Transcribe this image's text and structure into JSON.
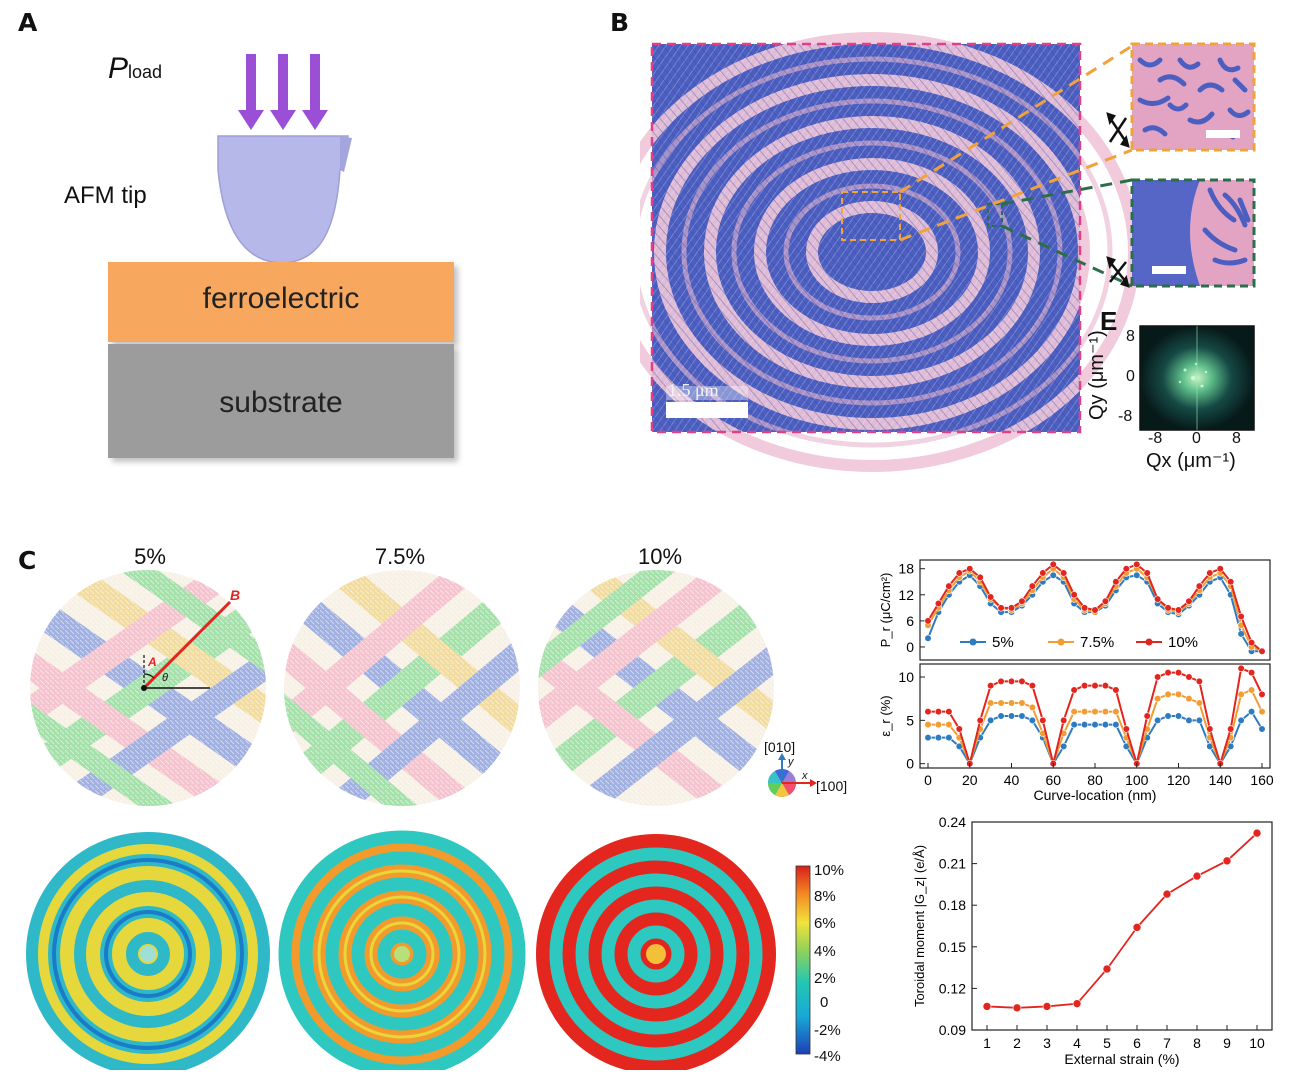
{
  "panels": {
    "a": "A",
    "b": "B",
    "c": "C"
  },
  "panel_a": {
    "p_symbol": "P",
    "p_subscript": "load",
    "tip_label": "AFM tip",
    "ferroelectric_label": "ferroelectric",
    "substrate_label": "substrate"
  },
  "panel_b": {
    "scale_label": "1.5 μm",
    "fft_label": "E",
    "fft_x_label": "Qx (μm⁻¹)",
    "fft_y_label": "Qy (μm⁻¹)",
    "fft_ticks": [
      "-8",
      "0",
      "8"
    ]
  },
  "panel_c": {
    "strains": [
      "5%",
      "7.5%",
      "10%"
    ],
    "marker_a": "A",
    "marker_b": "B",
    "angle_symbol": "θ",
    "axis_x": "x",
    "axis_y": "y",
    "wheel_label_010": "[010]",
    "wheel_label_100": "[100]",
    "colorbar_ticks": [
      "10%",
      "8%",
      "6%",
      "4%",
      "2%",
      "0",
      "-2%",
      "-4%"
    ]
  },
  "colors": {
    "blue_series": "#2f7bc0",
    "orange_series": "#f39c34",
    "red_series": "#e2261f",
    "arrow": "#9b4fd6",
    "magenta_frame": "#e0408b",
    "orange_frame": "#f0a23c",
    "green_frame": "#2b6e4a"
  },
  "chart_data": [
    {
      "type": "line",
      "title": "",
      "xlabel": "Curve-location (nm)",
      "ylabel": "P_r (μC/cm²)",
      "ylim": [
        -3,
        20
      ],
      "yticks": [
        0,
        6,
        12,
        18
      ],
      "x": [
        0,
        5,
        10,
        15,
        20,
        25,
        30,
        35,
        40,
        45,
        50,
        55,
        60,
        65,
        70,
        75,
        80,
        85,
        90,
        95,
        100,
        105,
        110,
        115,
        120,
        125,
        130,
        135,
        140,
        145,
        150,
        155,
        160
      ],
      "series": [
        {
          "name": "5%",
          "values": [
            2,
            8,
            12,
            15,
            16.5,
            14,
            10,
            8,
            8,
            9.5,
            12,
            15,
            16.5,
            15,
            10,
            8,
            8,
            9.5,
            13,
            16,
            16.5,
            15,
            10,
            8,
            7.5,
            9.5,
            12,
            15,
            16,
            12,
            3,
            -1,
            -1
          ]
        },
        {
          "name": "7.5%",
          "values": [
            5,
            9,
            13,
            16,
            17.5,
            15,
            11,
            9,
            8.5,
            10,
            13,
            16,
            18,
            16,
            11,
            8.5,
            8,
            10,
            14,
            17,
            18,
            16,
            11,
            8.5,
            8,
            10,
            13,
            16,
            17,
            14,
            5,
            0,
            -1
          ]
        },
        {
          "name": "10%",
          "values": [
            6,
            10,
            14,
            17,
            18,
            16,
            11.5,
            9,
            9,
            10.5,
            14,
            17,
            19,
            17,
            12,
            9,
            8.5,
            10.5,
            15,
            18,
            19,
            17,
            11,
            9,
            8.5,
            10.5,
            14,
            17,
            18,
            15,
            7,
            1,
            -1
          ]
        }
      ]
    },
    {
      "type": "line",
      "title": "",
      "xlabel": "Curve-location (nm)",
      "ylabel": "ε_r (%)",
      "xlim": [
        0,
        160
      ],
      "xticks": [
        "0",
        "20",
        "40",
        "60",
        "80",
        "100",
        "120",
        "140",
        "160"
      ],
      "ylim": [
        -0.5,
        11.5
      ],
      "yticks": [
        0,
        5,
        10
      ],
      "x": [
        0,
        5,
        10,
        15,
        20,
        25,
        30,
        35,
        40,
        45,
        50,
        55,
        60,
        65,
        70,
        75,
        80,
        85,
        90,
        95,
        100,
        105,
        110,
        115,
        120,
        125,
        130,
        135,
        140,
        145,
        150,
        155,
        160
      ],
      "series": [
        {
          "name": "5%",
          "values": [
            3,
            3,
            3,
            2,
            0,
            3,
            5,
            5.5,
            5.5,
            5.5,
            5,
            3,
            0,
            2,
            4.5,
            4.5,
            4.5,
            4.5,
            4.5,
            2,
            0,
            3,
            5,
            5.5,
            5.5,
            5,
            5,
            2,
            0,
            2,
            5,
            6,
            4
          ]
        },
        {
          "name": "7.5%",
          "values": [
            4.5,
            4.5,
            4.5,
            3,
            0,
            4,
            7,
            7,
            7,
            7,
            6.5,
            3.5,
            0,
            3.5,
            6,
            6,
            6,
            6,
            6,
            3,
            0,
            4,
            7.5,
            8,
            8,
            7.5,
            7,
            3,
            0,
            3,
            8,
            8.5,
            6
          ]
        },
        {
          "name": "10%",
          "values": [
            6,
            6,
            6,
            4,
            0,
            5,
            9,
            9.5,
            9.5,
            9.5,
            9,
            5,
            0,
            5,
            8.5,
            9,
            9,
            9,
            8.5,
            4,
            0,
            5.5,
            10,
            10.5,
            10.5,
            10,
            9.5,
            4,
            0,
            4,
            11,
            10.5,
            8
          ]
        }
      ]
    },
    {
      "type": "line",
      "title": "",
      "xlabel": "External strain (%)",
      "ylabel": "Toroidal moment |G_z| (e/Å)",
      "xlim": [
        0.5,
        10.5
      ],
      "ylim": [
        0.09,
        0.24
      ],
      "xticks": [
        "1",
        "2",
        "3",
        "4",
        "5",
        "6",
        "7",
        "8",
        "9",
        "10"
      ],
      "yticks": [
        "0.09",
        "0.12",
        "0.15",
        "0.18",
        "0.21",
        "0.24"
      ],
      "x": [
        1,
        2,
        3,
        4,
        5,
        6,
        7,
        8,
        9,
        10
      ],
      "series": [
        {
          "name": "Toroidal moment",
          "values": [
            0.107,
            0.106,
            0.107,
            0.109,
            0.134,
            0.164,
            0.188,
            0.201,
            0.212,
            0.232
          ]
        }
      ]
    }
  ]
}
